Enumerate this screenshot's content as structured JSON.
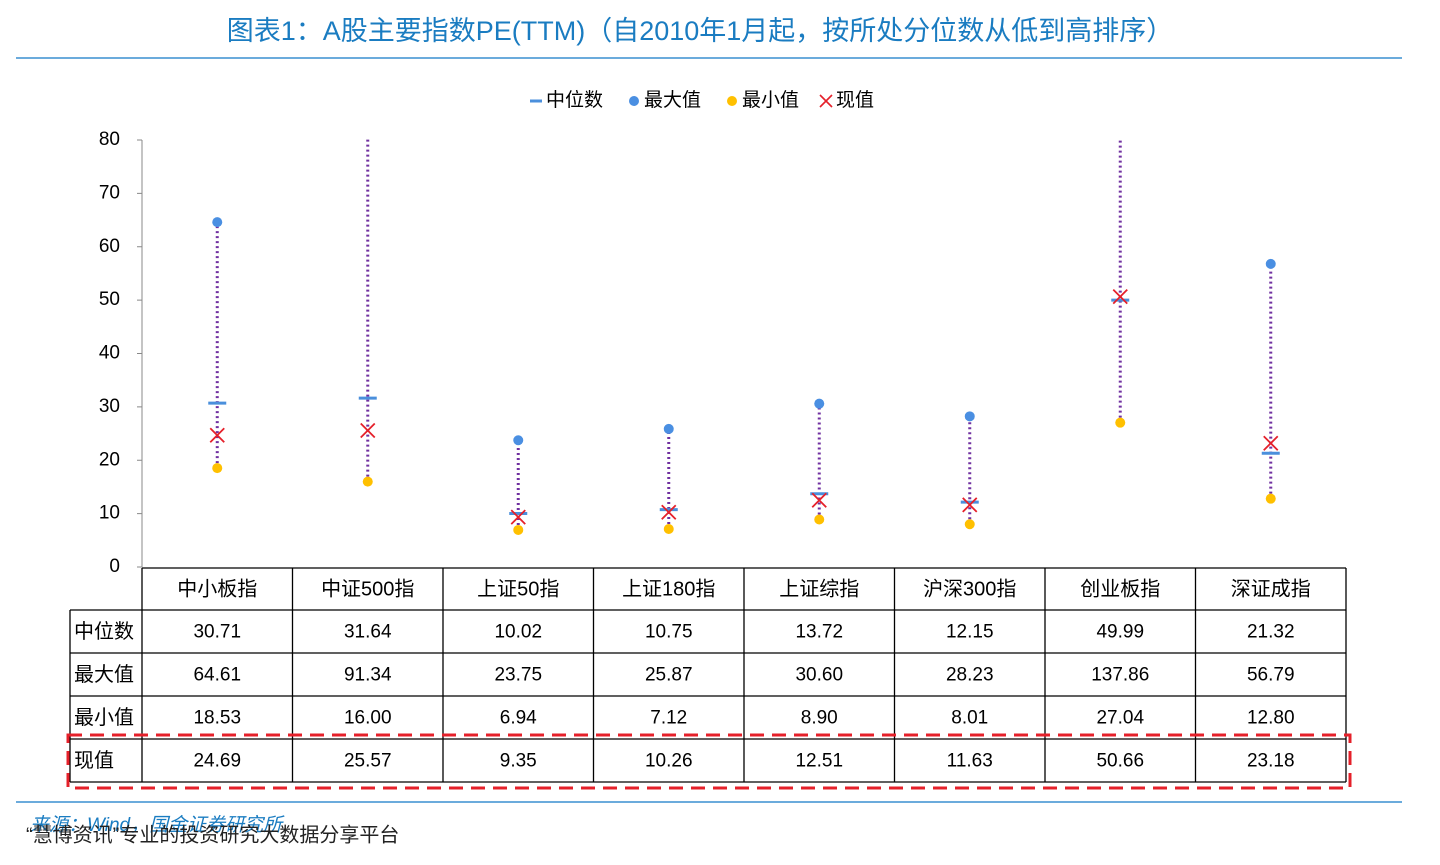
{
  "chart_data": {
    "type": "range-dot",
    "title": "图表1：A股主要指数PE(TTM)（自2010年1月起，按所处分位数从低到高排序）",
    "categories": [
      "中小板指",
      "中证500指",
      "上证50指",
      "上证180指",
      "上证综指",
      "沪深300指",
      "创业板指",
      "深证成指"
    ],
    "series": [
      {
        "name": "中位数",
        "marker": "dash",
        "color": "#4a8fdc",
        "values": [
          30.71,
          31.64,
          10.02,
          10.75,
          13.72,
          12.15,
          49.99,
          21.32
        ],
        "value_labels": [
          "30.71",
          "31.64",
          "10.02",
          "10.75",
          "13.72",
          "12.15",
          "49.99",
          "21.32"
        ]
      },
      {
        "name": "最大值",
        "marker": "circle",
        "color": "#4a8fe2",
        "values": [
          64.61,
          91.34,
          23.75,
          25.87,
          30.6,
          28.23,
          137.86,
          56.79
        ],
        "value_labels": [
          "64.61",
          "91.34",
          "23.75",
          "25.87",
          "30.60",
          "28.23",
          "137.86",
          "56.79"
        ]
      },
      {
        "name": "最小值",
        "marker": "circle",
        "color": "#ffc000",
        "values": [
          18.53,
          16,
          6.94,
          7.12,
          8.9,
          8.01,
          27.04,
          12.8
        ],
        "value_labels": [
          "18.53",
          "16.00",
          "6.94",
          "7.12",
          "8.90",
          "8.01",
          "27.04",
          "12.80"
        ]
      },
      {
        "name": "现值",
        "marker": "x",
        "color": "#e5202a",
        "values": [
          24.69,
          25.57,
          9.35,
          10.26,
          12.51,
          11.63,
          50.66,
          23.18
        ],
        "value_labels": [
          "24.69",
          "25.57",
          "9.35",
          "10.26",
          "12.51",
          "11.63",
          "50.66",
          "23.18"
        ]
      }
    ],
    "range_color": "#7030a0",
    "ylim": [
      0,
      80
    ],
    "yticks": [
      0,
      10,
      20,
      30,
      40,
      50,
      60,
      70,
      80
    ],
    "source": "来源：Wind，国金证券研究所",
    "watermark": "“慧博资讯”专业的投资研究大数据分享平台"
  }
}
